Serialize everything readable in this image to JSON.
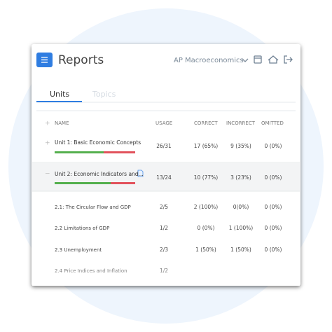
{
  "header": {
    "title": "Reports",
    "course": "AP Macroeconomics"
  },
  "tabs": [
    "Units",
    "Topics"
  ],
  "table": {
    "columns": [
      "NAME",
      "USAGE",
      "CORRECT",
      "INCORRECT",
      "OMITTED"
    ],
    "rows": [
      [
        "Unit 1: Basic Economic Concepts",
        "26/31",
        "17 (65%)",
        "9 (35%)",
        "0 (0%)"
      ],
      [
        "Unit 2: Economic Indicators and...",
        "13/24",
        "10 (77%)",
        "3 (23%)",
        "0 (0%)"
      ],
      [
        "2.1: The Circular Flow and GDP",
        "2/5",
        "2 (100%)",
        "0(0%)",
        "0 (0%)"
      ],
      [
        "2.2 Limitations of GDP",
        "1/2",
        "0 (0%)",
        "1 (100%)",
        "0 (0%)"
      ],
      [
        "2.3 Unemployment",
        "2/3",
        "1 (50%)",
        "1 (50%)",
        "0 (0%)"
      ],
      [
        "2.4 Price Indices and Inflation",
        "1/2",
        "",
        "",
        ""
      ]
    ]
  }
}
